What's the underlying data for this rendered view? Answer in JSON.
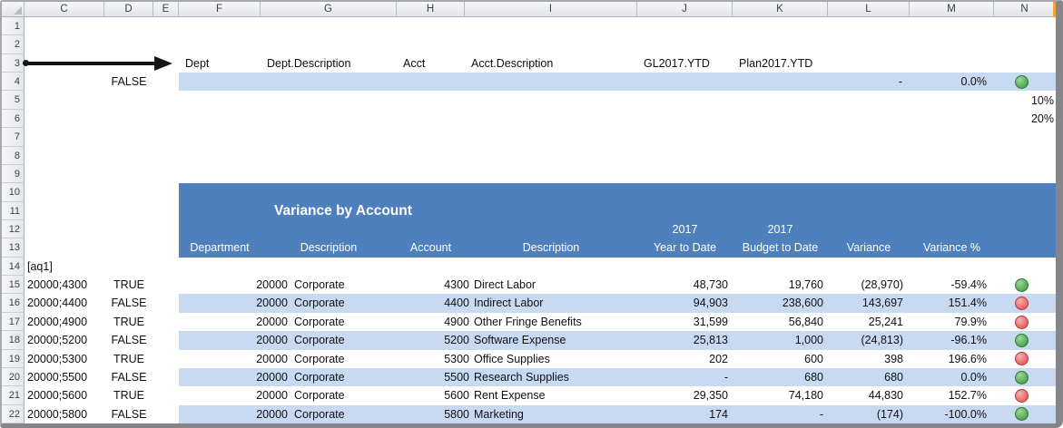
{
  "sheet": {
    "column_letters": [
      "C",
      "D",
      "E",
      "F",
      "G",
      "H",
      "I",
      "J",
      "K",
      "L",
      "M",
      "N"
    ],
    "row_numbers": [
      1,
      2,
      3,
      4,
      5,
      6,
      7,
      8,
      9,
      10,
      11,
      12,
      13,
      14,
      15,
      16,
      17,
      18,
      19,
      20,
      21,
      22
    ]
  },
  "field_header_row": {
    "dept": "Dept",
    "dept_description": "Dept.Description",
    "acct": "Acct",
    "acct_description": "Acct.Description",
    "gl_ytd": "GL2017.YTD",
    "plan_ytd": "Plan2017.YTD"
  },
  "kpi_row": {
    "flag": "FALSE",
    "variance": "-",
    "variance_pct": "0.0%",
    "icon": "green-circle"
  },
  "thresholds": {
    "low": "10%",
    "high": "20%"
  },
  "report": {
    "title": "Variance by Account",
    "columns": [
      {
        "line1": "",
        "line2": "Department"
      },
      {
        "line1": "",
        "line2": "Description"
      },
      {
        "line1": "",
        "line2": "Account"
      },
      {
        "line1": "",
        "line2": "Description"
      },
      {
        "line1": "2017",
        "line2": "Year to Date"
      },
      {
        "line1": "2017",
        "line2": "Budget to Date"
      },
      {
        "line1": "",
        "line2": "Variance"
      },
      {
        "line1": "",
        "line2": "Variance %"
      }
    ]
  },
  "marker_row": {
    "label": "[aq1]"
  },
  "data_rows": [
    {
      "row": 15,
      "key": "20000;4300",
      "flag": "TRUE",
      "dept": "20000",
      "dept_desc": "Corporate",
      "acct": "4300",
      "acct_desc": "Direct Labor",
      "ytd": "48,730",
      "budget": "19,760",
      "variance": "(28,970)",
      "variance_pct": "-59.4%",
      "icon": "green",
      "banded": false
    },
    {
      "row": 16,
      "key": "20000;4400",
      "flag": "FALSE",
      "dept": "20000",
      "dept_desc": "Corporate",
      "acct": "4400",
      "acct_desc": "Indirect Labor",
      "ytd": "94,903",
      "budget": "238,600",
      "variance": "143,697",
      "variance_pct": "151.4%",
      "icon": "red",
      "banded": true
    },
    {
      "row": 17,
      "key": "20000;4900",
      "flag": "TRUE",
      "dept": "20000",
      "dept_desc": "Corporate",
      "acct": "4900",
      "acct_desc": "Other Fringe Benefits",
      "ytd": "31,599",
      "budget": "56,840",
      "variance": "25,241",
      "variance_pct": "79.9%",
      "icon": "red",
      "banded": false
    },
    {
      "row": 18,
      "key": "20000;5200",
      "flag": "FALSE",
      "dept": "20000",
      "dept_desc": "Corporate",
      "acct": "5200",
      "acct_desc": "Software Expense",
      "ytd": "25,813",
      "budget": "1,000",
      "variance": "(24,813)",
      "variance_pct": "-96.1%",
      "icon": "green",
      "banded": true
    },
    {
      "row": 19,
      "key": "20000;5300",
      "flag": "TRUE",
      "dept": "20000",
      "dept_desc": "Corporate",
      "acct": "5300",
      "acct_desc": "Office Supplies",
      "ytd": "202",
      "budget": "600",
      "variance": "398",
      "variance_pct": "196.6%",
      "icon": "red",
      "banded": false
    },
    {
      "row": 20,
      "key": "20000;5500",
      "flag": "FALSE",
      "dept": "20000",
      "dept_desc": "Corporate",
      "acct": "5500",
      "acct_desc": "Research Supplies",
      "ytd": "-",
      "budget": "680",
      "variance": "680",
      "variance_pct": "0.0%",
      "icon": "green",
      "banded": true
    },
    {
      "row": 21,
      "key": "20000;5600",
      "flag": "TRUE",
      "dept": "20000",
      "dept_desc": "Corporate",
      "acct": "5600",
      "acct_desc": "Rent Expense",
      "ytd": "29,350",
      "budget": "74,180",
      "variance": "44,830",
      "variance_pct": "152.7%",
      "icon": "red",
      "banded": false
    },
    {
      "row": 22,
      "key": "20000;5800",
      "flag": "FALSE",
      "dept": "20000",
      "dept_desc": "Corporate",
      "acct": "5800",
      "acct_desc": "Marketing",
      "ytd": "174",
      "budget": "-",
      "variance": "(174)",
      "variance_pct": "-100.0%",
      "icon": "green",
      "banded": true
    }
  ],
  "colors": {
    "report_header_blue": "#4E80BE",
    "band_blue": "#C7DAF1",
    "icon_green": "#4DA34D",
    "icon_red": "#E75F5F",
    "amber_marker": "#F0A33C",
    "arrow_black": "#141414"
  }
}
